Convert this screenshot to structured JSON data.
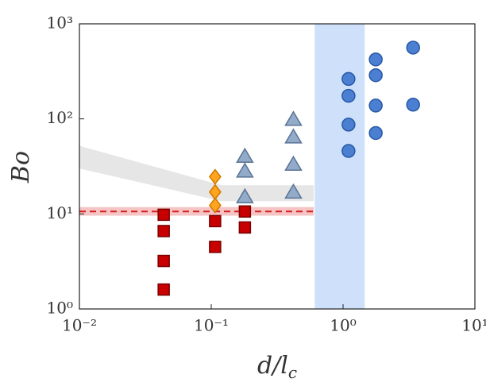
{
  "chart_data": {
    "type": "scatter",
    "xlabel": "d/lc",
    "ylabel": "Bo",
    "xscale": "log",
    "yscale": "log",
    "xlim": [
      0.01,
      10
    ],
    "ylim": [
      1,
      1000
    ],
    "xticks": [
      {
        "value": 0.01,
        "label": "10⁻²"
      },
      {
        "value": 0.1,
        "label": "10⁻¹"
      },
      {
        "value": 1,
        "label": "10⁰"
      },
      {
        "value": 10,
        "label": "10¹"
      }
    ],
    "yticks": [
      {
        "value": 1,
        "label": "10⁰"
      },
      {
        "value": 10,
        "label": "10¹"
      },
      {
        "value": 100,
        "label": "10²"
      },
      {
        "value": 1000,
        "label": "10³"
      }
    ],
    "xspans": [
      {
        "color": "#cfe0fb",
        "range": [
          0.61,
          1.46
        ]
      }
    ],
    "bands": [
      {
        "color": "#e6e6e6",
        "x": [
          0.01,
          0.12,
          0.6
        ],
        "lower": [
          30,
          13.6,
          13.6
        ],
        "upper": [
          52,
          20,
          20
        ]
      },
      {
        "color": "#f6c4c4",
        "x": [
          0.01,
          0.6
        ],
        "lower": [
          9.6,
          9.6
        ],
        "upper": [
          11.8,
          11.8
        ]
      }
    ],
    "lines": [
      {
        "color": "#d42020",
        "style": "dashed",
        "x": [
          0.01,
          0.6
        ],
        "values": [
          10.6,
          10.6
        ]
      }
    ],
    "series": [
      {
        "marker": "square",
        "color": "#c80000",
        "edge": "#7a0000",
        "x": [
          0.0436,
          0.0436,
          0.0436,
          0.0436,
          0.107,
          0.107,
          0.18,
          0.18
        ],
        "values": [
          9.8,
          6.6,
          3.2,
          1.6,
          8.4,
          4.5,
          10.6,
          7.2
        ]
      },
      {
        "marker": "diamond",
        "color": "#ffa41c",
        "edge": "#d07800",
        "x": [
          0.107,
          0.107,
          0.107
        ],
        "values": [
          24.6,
          17,
          12.3
        ]
      },
      {
        "marker": "triangle",
        "color": "#92abc9",
        "edge": "#5b7394",
        "x": [
          0.18,
          0.18,
          0.18,
          0.42,
          0.42,
          0.42,
          0.42
        ],
        "values": [
          40,
          28,
          15,
          98,
          64,
          33,
          16.8
        ]
      },
      {
        "marker": "circle",
        "color": "#4a7fd2",
        "edge": "#2858a6",
        "x": [
          1.1,
          1.1,
          1.1,
          1.1,
          1.77,
          1.77,
          1.77,
          1.77,
          3.4,
          3.4
        ],
        "values": [
          263,
          175,
          87,
          46,
          422,
          288,
          138,
          71,
          562,
          141
        ]
      }
    ]
  }
}
